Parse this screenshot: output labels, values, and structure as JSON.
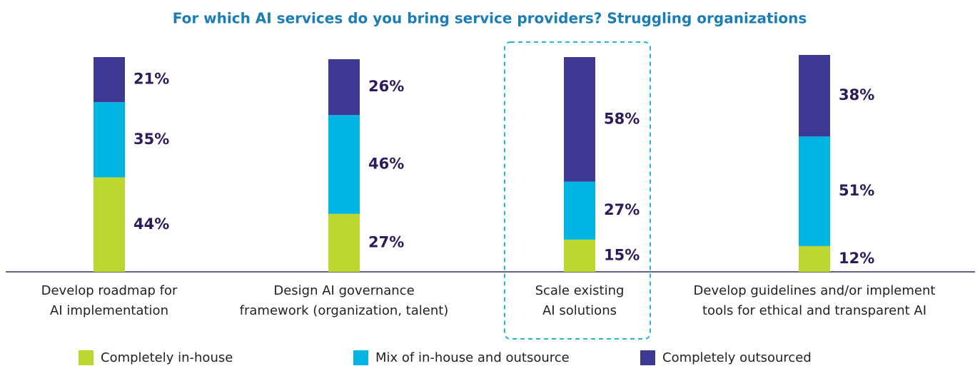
{
  "chart_data": {
    "type": "stacked_bar",
    "title": "For which AI services do you bring service providers? Struggling organizations",
    "categories": [
      "Develop roadmap for\nAI implementation",
      "Design AI governance\nframework (organization, talent)",
      "Scale existing\nAI solutions",
      "Develop guidelines and/or implement\ntools for ethical and transparent AI"
    ],
    "series": [
      {
        "name": "Completely in-house",
        "color": "#bed630",
        "values": [
          44,
          27,
          15,
          12
        ],
        "value_labels": [
          "44%",
          "27%",
          "15%",
          "12%"
        ]
      },
      {
        "name": "Mix of in-house and outsource",
        "color": "#00b5e2",
        "values": [
          35,
          46,
          27,
          51
        ],
        "value_labels": [
          "35%",
          "46%",
          "27%",
          "51%"
        ]
      },
      {
        "name": "Completely outsourced",
        "color": "#3e3a94",
        "values": [
          21,
          26,
          58,
          38
        ],
        "value_labels": [
          "21%",
          "26%",
          "58%",
          "38%"
        ]
      }
    ],
    "ylim": [
      0,
      100
    ]
  }
}
